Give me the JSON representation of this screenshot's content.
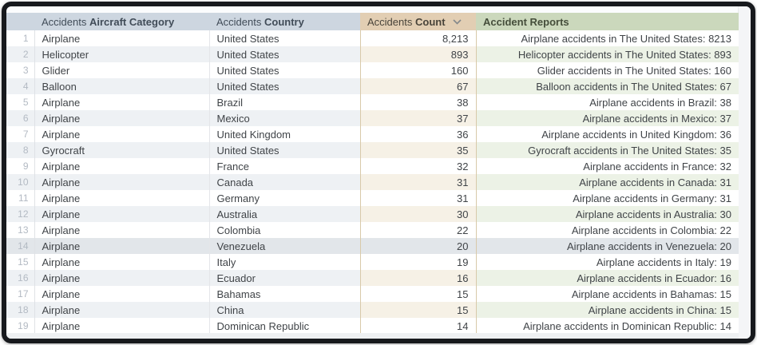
{
  "table": {
    "columns": {
      "row_number": {
        "label": ""
      },
      "category": {
        "prefix": "Accidents",
        "label": "Aircraft Category"
      },
      "country": {
        "prefix": "Accidents",
        "label": "Country"
      },
      "count": {
        "prefix": "Accidents",
        "label": "Count",
        "sort_direction": "descending",
        "sort_icon": "chevron-down"
      },
      "reports": {
        "label": "Accident Reports"
      }
    },
    "highlighted_row_number": 14,
    "rows": [
      {
        "n": 1,
        "category": "Airplane",
        "country": "United States",
        "count": "8,213",
        "report": "Airplane accidents in The United States: 8213"
      },
      {
        "n": 2,
        "category": "Helicopter",
        "country": "United States",
        "count": "893",
        "report": "Helicopter accidents in The United States: 893"
      },
      {
        "n": 3,
        "category": "Glider",
        "country": "United States",
        "count": "160",
        "report": "Glider accidents in The United States: 160"
      },
      {
        "n": 4,
        "category": "Balloon",
        "country": "United States",
        "count": "67",
        "report": "Balloon accidents in The United States: 67"
      },
      {
        "n": 5,
        "category": "Airplane",
        "country": "Brazil",
        "count": "38",
        "report": "Airplane accidents in Brazil: 38"
      },
      {
        "n": 6,
        "category": "Airplane",
        "country": "Mexico",
        "count": "37",
        "report": "Airplane accidents in Mexico: 37"
      },
      {
        "n": 7,
        "category": "Airplane",
        "country": "United Kingdom",
        "count": "36",
        "report": "Airplane accidents in United Kingdom: 36"
      },
      {
        "n": 8,
        "category": "Gyrocraft",
        "country": "United States",
        "count": "35",
        "report": "Gyrocraft accidents in The United States: 35"
      },
      {
        "n": 9,
        "category": "Airplane",
        "country": "France",
        "count": "32",
        "report": "Airplane accidents in France: 32"
      },
      {
        "n": 10,
        "category": "Airplane",
        "country": "Canada",
        "count": "31",
        "report": "Airplane accidents in Canada: 31"
      },
      {
        "n": 11,
        "category": "Airplane",
        "country": "Germany",
        "count": "31",
        "report": "Airplane accidents in Germany: 31"
      },
      {
        "n": 12,
        "category": "Airplane",
        "country": "Australia",
        "count": "30",
        "report": "Airplane accidents in Australia: 30"
      },
      {
        "n": 13,
        "category": "Airplane",
        "country": "Colombia",
        "count": "22",
        "report": "Airplane accidents in Colombia: 22"
      },
      {
        "n": 14,
        "category": "Airplane",
        "country": "Venezuela",
        "count": "20",
        "report": "Airplane accidents in Venezuela: 20"
      },
      {
        "n": 15,
        "category": "Airplane",
        "country": "Italy",
        "count": "19",
        "report": "Airplane accidents in Italy: 19"
      },
      {
        "n": 16,
        "category": "Airplane",
        "country": "Ecuador",
        "count": "16",
        "report": "Airplane accidents in Ecuador: 16"
      },
      {
        "n": 17,
        "category": "Airplane",
        "country": "Bahamas",
        "count": "15",
        "report": "Airplane accidents in Bahamas: 15"
      },
      {
        "n": 18,
        "category": "Airplane",
        "country": "China",
        "count": "15",
        "report": "Airplane accidents in China: 15"
      },
      {
        "n": 19,
        "category": "Airplane",
        "country": "Dominican Republic",
        "count": "14",
        "report": "Airplane accidents in Dominican Republic: 14"
      }
    ]
  },
  "colors": {
    "header_blue": "#cdd6e0",
    "header_tan": "#e2ceb3",
    "header_green": "#cbd8bc",
    "row_alt_blue": "#eef1f4",
    "row_alt_tan": "#f6f1e6",
    "row_alt_green": "#ecf2e6",
    "highlight_row": "#e2e6ea",
    "count_column_border": "#d8c9a9",
    "frame_border": "#17191d"
  }
}
